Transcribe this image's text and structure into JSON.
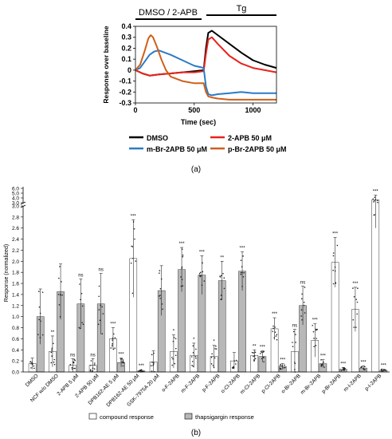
{
  "chart_data": [
    {
      "panel": "(a)",
      "type": "line",
      "xlabel": "Time (sec)",
      "ylabel": "Response over baseline",
      "xlim": [
        0,
        1200
      ],
      "ylim": [
        -0.3,
        0.4
      ],
      "xticks": [
        "0",
        "500",
        "1000"
      ],
      "yticks": [
        "0.4",
        "0.3",
        "0.2",
        "0.1",
        "0",
        "-0.1",
        "-0.2",
        "-0.3"
      ],
      "period_labels": [
        "DMSO / 2-APB",
        "Tg"
      ],
      "period_ranges": [
        [
          0,
          600
        ],
        [
          600,
          1200
        ]
      ],
      "series": [
        {
          "name": "DMSO",
          "color": "#000000",
          "x": [
            0,
            60,
            120,
            200,
            300,
            400,
            500,
            580,
            600,
            620,
            650,
            700,
            800,
            900,
            1000,
            1100,
            1200
          ],
          "y": [
            0.0,
            -0.03,
            -0.05,
            -0.04,
            -0.03,
            -0.02,
            -0.01,
            0.0,
            0.2,
            0.34,
            0.36,
            0.32,
            0.24,
            0.16,
            0.09,
            0.05,
            0.02
          ]
        },
        {
          "name": "2-APB 50 μM",
          "color": "#e8231c",
          "x": [
            0,
            60,
            120,
            200,
            300,
            400,
            500,
            580,
            600,
            620,
            650,
            700,
            800,
            900,
            1000,
            1100,
            1200
          ],
          "y": [
            0.0,
            -0.03,
            -0.05,
            -0.04,
            -0.03,
            -0.02,
            -0.02,
            -0.01,
            0.15,
            0.28,
            0.3,
            0.24,
            0.13,
            0.06,
            0.02,
            0.0,
            -0.02
          ]
        },
        {
          "name": "m-Br-2APB 50 μM",
          "color": "#2b7bc6",
          "x": [
            0,
            40,
            80,
            120,
            160,
            200,
            300,
            400,
            500,
            580,
            600,
            620,
            650,
            700,
            800,
            900,
            1000,
            1100,
            1200
          ],
          "y": [
            0.0,
            0.02,
            0.08,
            0.14,
            0.17,
            0.18,
            0.14,
            0.09,
            0.04,
            0.02,
            -0.15,
            -0.22,
            -0.23,
            -0.22,
            -0.21,
            -0.2,
            -0.21,
            -0.21,
            -0.21
          ]
        },
        {
          "name": "p-Br-2APB 50 μM",
          "color": "#cf5f1a",
          "x": [
            0,
            40,
            80,
            110,
            130,
            150,
            180,
            220,
            260,
            300,
            400,
            500,
            580,
            600,
            620,
            650,
            700,
            800,
            900,
            1000,
            1100,
            1200
          ],
          "y": [
            0.0,
            0.05,
            0.18,
            0.29,
            0.32,
            0.3,
            0.22,
            0.1,
            0.0,
            -0.06,
            -0.1,
            -0.12,
            -0.12,
            -0.2,
            -0.24,
            -0.25,
            -0.26,
            -0.27,
            -0.27,
            -0.27,
            -0.27,
            -0.27
          ]
        }
      ],
      "legend": [
        "DMSO",
        "2-APB 50 μM",
        "m-Br-2APB 50 μM",
        "p-Br-2APB 50 μM"
      ]
    },
    {
      "panel": "(b)",
      "type": "bar",
      "ylabel": "Response (normalized)",
      "yticks_lower": [
        "0.0",
        "0.2",
        "0.4",
        "0.6",
        "0.8",
        "1.0",
        "1.2",
        "1.4",
        "1.6",
        "1.8",
        "2.0",
        "2.2",
        "2.4",
        "2.6",
        "2.8",
        "3.0"
      ],
      "yticks_upper": [
        "3.0",
        "4.0",
        "5.0",
        "6.0"
      ],
      "ylim": [
        0,
        6.0
      ],
      "axis_break": [
        3.0,
        3.0
      ],
      "categories": [
        "DMSO",
        "NCF w/o DMSO",
        "2-APB 5 μM",
        "2-APB 50 μM",
        "DPB162-AE 5 μM",
        "DPB162-AE 50 μM",
        "GSK-7975A 20 μM",
        "o-F-2APB",
        "m-F-2APB",
        "p-F-2APB",
        "o-Cl-2APB",
        "m-Cl-2APB",
        "p-Cl-2APB",
        "o-Br-2APB",
        "m-Br-2APB",
        "p-Br-2APB",
        "m-I-2APB",
        "p-I-2APB"
      ],
      "series": [
        {
          "name": "compound response",
          "color": "#ffffff",
          "values": [
            0.15,
            0.37,
            0.12,
            0.12,
            0.6,
            2.05,
            0.18,
            0.37,
            0.3,
            0.28,
            0.2,
            0.3,
            0.78,
            0.37,
            0.57,
            1.98,
            1.13,
            3.6
          ],
          "errors": [
            0.1,
            0.28,
            0.12,
            0.12,
            0.2,
            0.7,
            0.2,
            0.3,
            0.22,
            0.2,
            0.15,
            0.1,
            0.2,
            0.4,
            0.3,
            0.45,
            0.4,
            1.0
          ],
          "significance": [
            "",
            "**",
            "ns",
            "ns",
            "***",
            "***",
            "",
            "*",
            "*",
            "*",
            "",
            "**",
            "***",
            "ns",
            "***",
            "***",
            "***",
            "***"
          ]
        },
        {
          "name": "thapsigargin response",
          "color": "#b8b8b8",
          "values": [
            1.0,
            1.45,
            1.23,
            1.23,
            0.17,
            0.02,
            1.47,
            1.85,
            1.75,
            1.65,
            1.82,
            0.28,
            0.1,
            1.2,
            0.15,
            0.05,
            0.07,
            0.03
          ],
          "errors": [
            0.5,
            0.5,
            0.45,
            0.55,
            0.08,
            0.02,
            0.45,
            0.4,
            0.35,
            0.35,
            0.35,
            0.1,
            0.05,
            0.35,
            0.07,
            0.03,
            0.04,
            0.02
          ],
          "significance": [
            "",
            "",
            "ns",
            "ns",
            "***",
            "***",
            "",
            "***",
            "***",
            "**",
            "***",
            "***",
            "***",
            "ns",
            "***",
            "***",
            "***",
            "***"
          ]
        }
      ],
      "legend": [
        "compound response",
        "thapsigargin response"
      ],
      "caption": "(b)"
    }
  ]
}
